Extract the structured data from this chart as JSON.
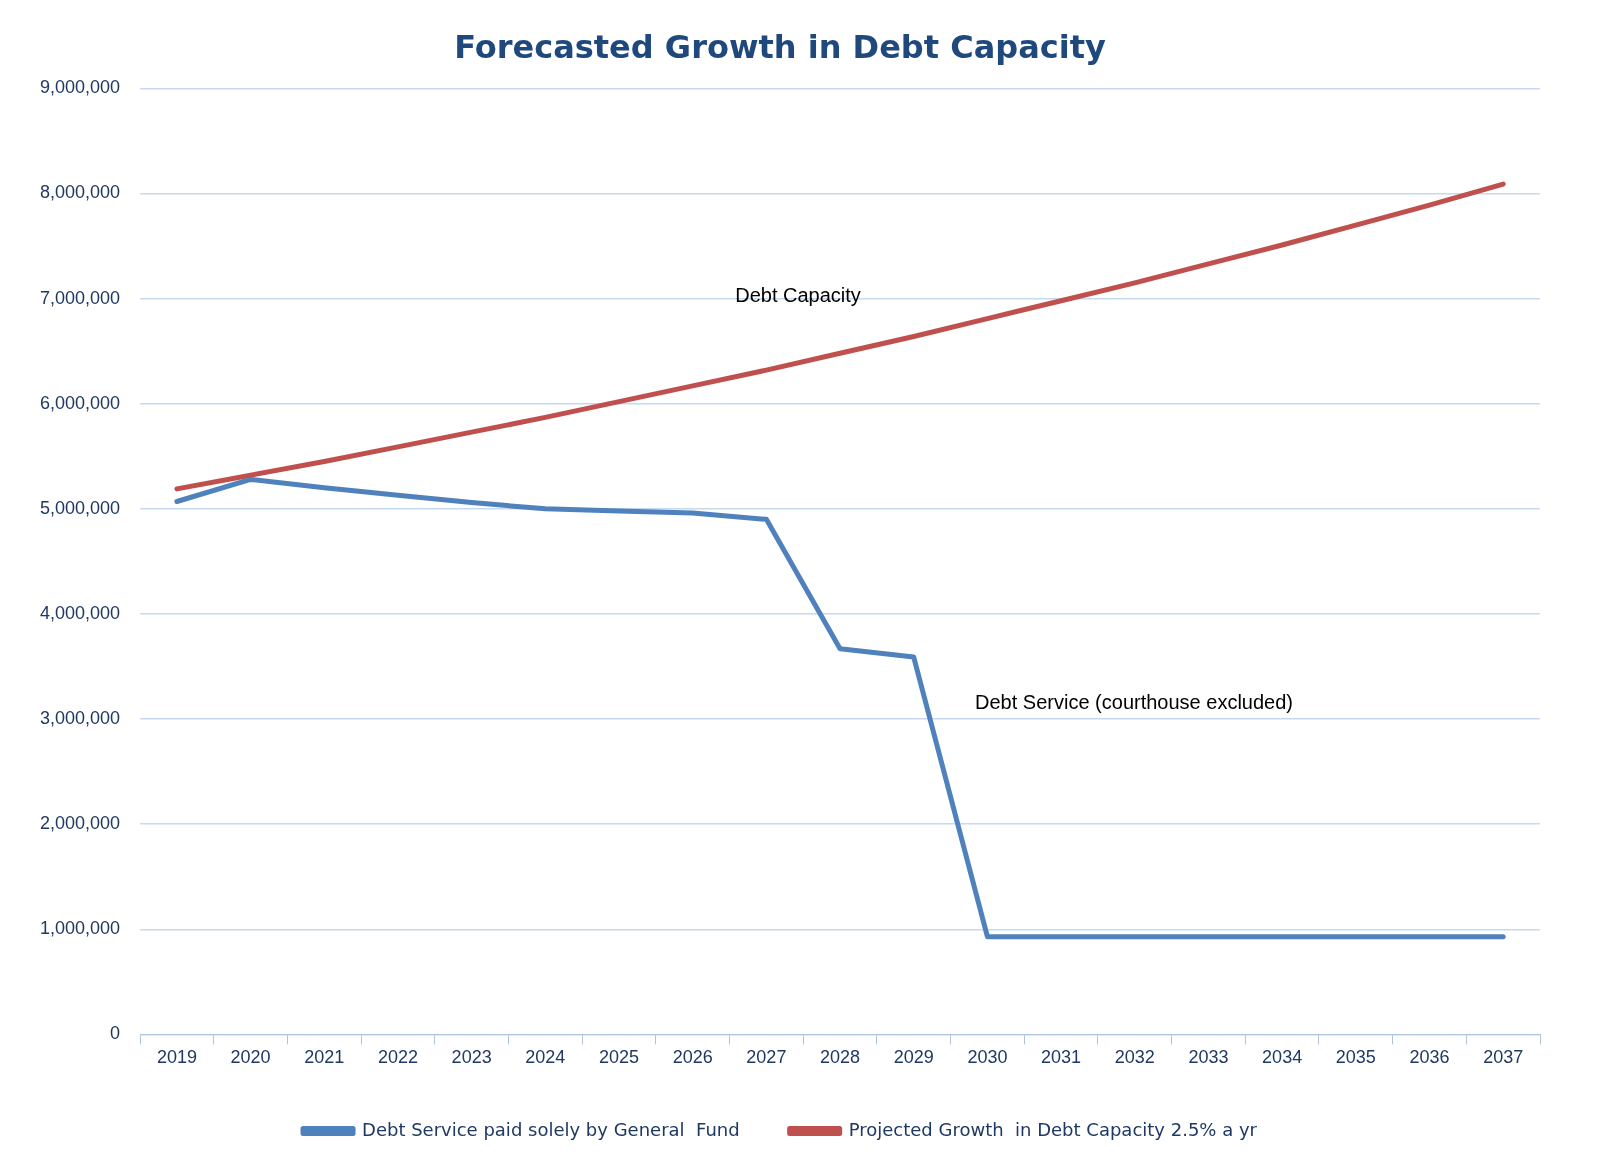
{
  "chart_data": {
    "type": "line",
    "title": "Forecasted Growth in Debt Capacity",
    "categories": [
      "2019",
      "2020",
      "2021",
      "2022",
      "2023",
      "2024",
      "2025",
      "2026",
      "2027",
      "2028",
      "2029",
      "2030",
      "2031",
      "2032",
      "2033",
      "2034",
      "2035",
      "2036",
      "2037"
    ],
    "series": [
      {
        "name": "Debt Service paid solely by General  Fund",
        "color": "#4f81bd",
        "values": [
          5070000,
          5280000,
          5200000,
          5130000,
          5060000,
          5000000,
          4980000,
          4960000,
          4900000,
          3670000,
          3590000,
          930000,
          930000,
          930000,
          930000,
          930000,
          930000,
          930000,
          930000
        ]
      },
      {
        "name": "Projected Growth  in Debt Capacity 2.5% a yr",
        "color": "#c0504d",
        "values": [
          5190000,
          5320000,
          5450000,
          5590000,
          5730000,
          5870000,
          6020000,
          6170000,
          6320000,
          6480000,
          6640000,
          6810000,
          6980000,
          7150000,
          7330000,
          7510000,
          7700000,
          7890000,
          8090000
        ]
      }
    ],
    "ylim": [
      0,
      9000000
    ],
    "yticks": [
      {
        "value": 0,
        "label": "0"
      },
      {
        "value": 1000000,
        "label": "1,000,000"
      },
      {
        "value": 2000000,
        "label": "2,000,000"
      },
      {
        "value": 3000000,
        "label": "3,000,000"
      },
      {
        "value": 4000000,
        "label": "4,000,000"
      },
      {
        "value": 5000000,
        "label": "5,000,000"
      },
      {
        "value": 6000000,
        "label": "6,000,000"
      },
      {
        "value": 7000000,
        "label": "7,000,000"
      },
      {
        "value": 8000000,
        "label": "8,000,000"
      },
      {
        "value": 9000000,
        "label": "9,000,000"
      }
    ],
    "grid": "y",
    "legend": "bottom",
    "marker": "none",
    "line_style": "solid",
    "annotations": [
      "Debt Capacity",
      "Debt Service (courthouse excluded)"
    ]
  }
}
